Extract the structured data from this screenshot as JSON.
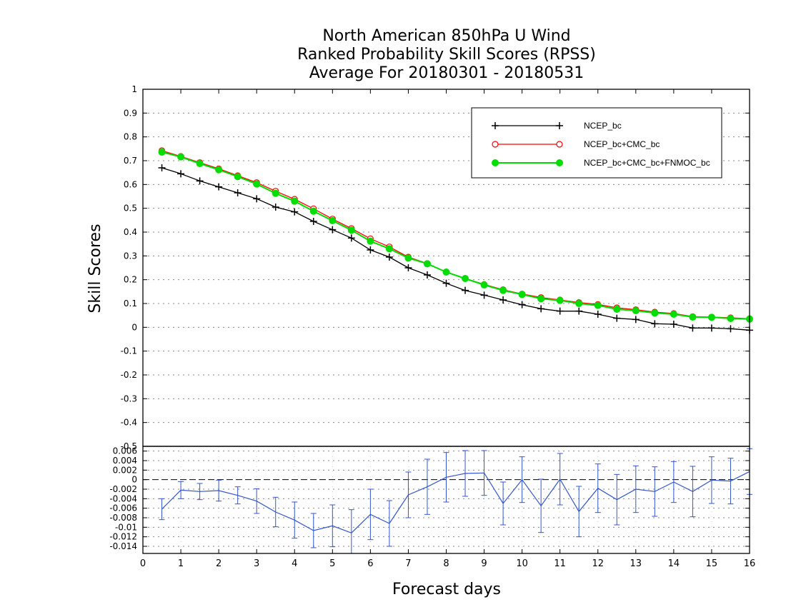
{
  "title_lines": [
    "North American 850hPa U Wind",
    "Ranked Probability Skill Scores (RPSS)",
    "Average For 20180301 - 20180531"
  ],
  "chart_data": [
    {
      "type": "line",
      "title": "North American 850hPa U Wind Ranked Probability Skill Scores (RPSS) Average For 20180301 - 20180531",
      "xlabel": "Forecast days",
      "ylabel": "Skill Scores",
      "xlim": [
        0,
        16
      ],
      "ylim": [
        -0.5,
        1
      ],
      "grid": true,
      "legend_position": "top-right",
      "x": [
        0.5,
        1,
        1.5,
        2,
        2.5,
        3,
        3.5,
        4,
        4.5,
        5,
        5.5,
        6,
        6.5,
        7,
        7.5,
        8,
        8.5,
        9,
        9.5,
        10,
        10.5,
        11,
        11.5,
        12,
        12.5,
        13,
        13.5,
        14,
        14.5,
        15,
        15.5,
        16
      ],
      "xticks": [
        "0",
        "1",
        "2",
        "3",
        "4",
        "5",
        "6",
        "7",
        "8",
        "9",
        "10",
        "11",
        "12",
        "13",
        "14",
        "15",
        "16"
      ],
      "yticks": [
        "1",
        "0.9",
        "0.8",
        "0.7",
        "0.6",
        "0.5",
        "0.4",
        "0.3",
        "0.2",
        "0.1",
        "0",
        "-0.1",
        "-0.2",
        "-0.3",
        "-0.4",
        "-0.5"
      ],
      "series": [
        {
          "name": "NCEP_bc",
          "color": "#000000",
          "marker": "plus",
          "values": [
            0.67,
            0.645,
            0.615,
            0.59,
            0.565,
            0.54,
            0.505,
            0.485,
            0.445,
            0.41,
            0.375,
            0.325,
            0.295,
            0.25,
            0.22,
            0.185,
            0.155,
            0.135,
            0.115,
            0.095,
            0.078,
            0.068,
            0.068,
            0.055,
            0.038,
            0.033,
            0.015,
            0.013,
            -0.003,
            -0.003,
            -0.006,
            -0.012
          ]
        },
        {
          "name": "NCEP_bc+CMC_bc",
          "color": "#ff0000",
          "marker": "open-circle",
          "values": [
            0.742,
            0.718,
            0.692,
            0.666,
            0.637,
            0.608,
            0.572,
            0.538,
            0.498,
            0.455,
            0.415,
            0.372,
            0.338,
            0.295,
            0.268,
            0.232,
            0.205,
            0.18,
            0.158,
            0.14,
            0.125,
            0.115,
            0.104,
            0.096,
            0.082,
            0.074,
            0.064,
            0.058,
            0.045,
            0.043,
            0.04,
            0.036
          ]
        },
        {
          "name": "NCEP_bc+CMC_bc+FNMOC_bc",
          "color": "#00dd00",
          "marker": "filled-circle",
          "values": [
            0.736,
            0.716,
            0.688,
            0.662,
            0.633,
            0.602,
            0.563,
            0.53,
            0.488,
            0.448,
            0.408,
            0.362,
            0.33,
            0.291,
            0.267,
            0.232,
            0.205,
            0.178,
            0.155,
            0.138,
            0.12,
            0.113,
            0.1,
            0.092,
            0.076,
            0.07,
            0.06,
            0.055,
            0.043,
            0.042,
            0.037,
            0.035
          ]
        }
      ]
    },
    {
      "type": "line",
      "xlabel": "Forecast days",
      "xlim": [
        0,
        16
      ],
      "ylim": [
        -0.0155,
        0.007
      ],
      "grid": true,
      "zero_line": true,
      "x": [
        0.5,
        1,
        1.5,
        2,
        2.5,
        3,
        3.5,
        4,
        4.5,
        5,
        5.5,
        6,
        6.5,
        7,
        7.5,
        8,
        8.5,
        9,
        9.5,
        10,
        10.5,
        11,
        11.5,
        12,
        12.5,
        13,
        13.5,
        14,
        14.5,
        15,
        15.5,
        16
      ],
      "yticks": [
        "0.006",
        "0.004",
        "0.002",
        "0",
        "-0.002",
        "-0.004",
        "-0.006",
        "-0.008",
        "-0.01",
        "-0.012",
        "-0.014"
      ],
      "series": [
        {
          "color": "#3355cc",
          "values": [
            -0.0062,
            -0.0022,
            -0.0025,
            -0.0023,
            -0.0033,
            -0.0045,
            -0.0068,
            -0.0085,
            -0.0107,
            -0.0097,
            -0.0112,
            -0.0073,
            -0.0092,
            -0.0032,
            -0.0015,
            0.0005,
            0.0013,
            0.0014,
            -0.005,
            0,
            -0.0055,
            0.0001,
            -0.0067,
            -0.0018,
            -0.0042,
            -0.002,
            -0.0025,
            -0.0005,
            -0.0025,
            -0.0001,
            -0.0003,
            0.0017
          ],
          "error": [
            0.0022,
            0.0018,
            0.0017,
            0.0022,
            0.0018,
            0.0026,
            0.0031,
            0.0038,
            0.0036,
            0.0044,
            0.0049,
            0.0053,
            0.0048,
            0.0048,
            0.0058,
            0.0052,
            0.0048,
            0.0047,
            0.0045,
            0.0048,
            0.0056,
            0.0054,
            0.0053,
            0.0051,
            0.0053,
            0.0049,
            0.0052,
            0.0043,
            0.0053,
            0.0049,
            0.0048,
            0.0048
          ]
        }
      ]
    }
  ]
}
